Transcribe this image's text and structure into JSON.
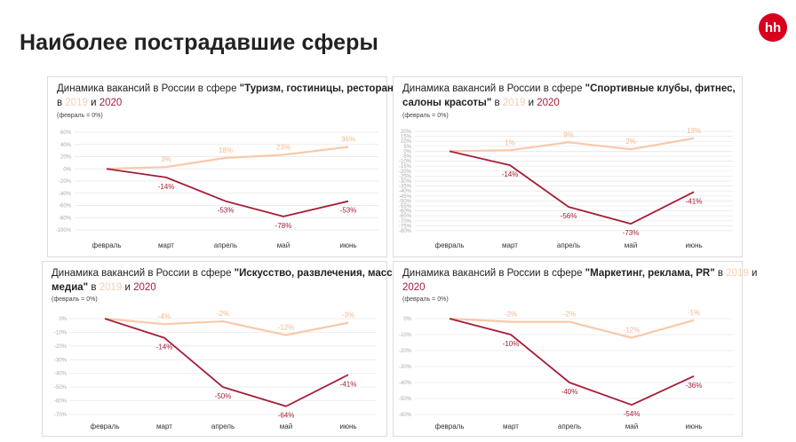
{
  "header": {
    "title": "Наиболее пострадавшие сферы",
    "logo_text": "hh",
    "logo_color": "#d6001c"
  },
  "colors": {
    "y2019": "#f8c9a9",
    "y2020": "#a51d36",
    "grid": "#e6e6e6"
  },
  "chart_data": [
    {
      "type": "line",
      "title_prefix": "Динамика вакансий в России в сфере ",
      "title_bold": "\"Туризм, гостиницы, рестораны\"",
      "title_in": "в",
      "year_2019": "2019",
      "title_and": "и",
      "year_2020": "2020",
      "note": "(февраль = 0%)",
      "categories": [
        "февраль",
        "март",
        "апрель",
        "май",
        "июнь"
      ],
      "yticks": [
        "60%",
        "40%",
        "20%",
        "0%",
        "-20%",
        "-40%",
        "-60%",
        "-80%",
        "-100%"
      ],
      "ylim": [
        -100,
        60
      ],
      "series": [
        {
          "name": "2019",
          "values": [
            0,
            3,
            18,
            23,
            36
          ],
          "labels": [
            "",
            "3%",
            "18%",
            "23%",
            "36%"
          ]
        },
        {
          "name": "2020",
          "values": [
            0,
            -14,
            -53,
            -78,
            -53
          ],
          "labels": [
            "",
            "-14%",
            "-53%",
            "-78%",
            "-53%"
          ]
        }
      ]
    },
    {
      "type": "line",
      "title_prefix": "Динамика вакансий в России в сфере ",
      "title_bold": "\"Спортивные клубы, фитнес, салоны красоты\"",
      "title_in": "в",
      "year_2019": "2019",
      "title_and": "и",
      "year_2020": "2020",
      "note": "(февраль = 0%)",
      "categories": [
        "февраль",
        "март",
        "апрель",
        "май",
        "июнь"
      ],
      "yticks": [
        "20%",
        "15%",
        "10%",
        "5%",
        "0%",
        "-5%",
        "-10%",
        "-15%",
        "-20%",
        "-25%",
        "-30%",
        "-35%",
        "-40%",
        "-45%",
        "-50%",
        "-55%",
        "-60%",
        "-65%",
        "-70%",
        "-75%",
        "-80%"
      ],
      "ylim": [
        -80,
        20
      ],
      "series": [
        {
          "name": "2019",
          "values": [
            0,
            1,
            9,
            2,
            13
          ],
          "labels": [
            "",
            "1%",
            "9%",
            "2%",
            "13%"
          ]
        },
        {
          "name": "2020",
          "values": [
            0,
            -14,
            -56,
            -73,
            -41
          ],
          "labels": [
            "",
            "-14%",
            "-56%",
            "-73%",
            "-41%"
          ]
        }
      ]
    },
    {
      "type": "line",
      "title_prefix": "Динамика вакансий в России в сфере ",
      "title_bold": "\"Искусство, развлечения, масс-медиа\"",
      "title_in": "в",
      "year_2019": "2019",
      "title_and": "и",
      "year_2020": "2020",
      "note": "(февраль = 0%)",
      "categories": [
        "февраль",
        "март",
        "апрель",
        "май",
        "июнь"
      ],
      "yticks": [
        "0%",
        "-10%",
        "-20%",
        "-30%",
        "-40%",
        "-50%",
        "-60%",
        "-70%"
      ],
      "ylim": [
        -70,
        0
      ],
      "series": [
        {
          "name": "2019",
          "values": [
            0,
            -4,
            -2,
            -12,
            -3
          ],
          "labels": [
            "",
            "-4%",
            "-2%",
            "-12%",
            "-3%"
          ]
        },
        {
          "name": "2020",
          "values": [
            0,
            -14,
            -50,
            -64,
            -41
          ],
          "labels": [
            "",
            "-14%",
            "-50%",
            "-64%",
            "-41%"
          ]
        }
      ]
    },
    {
      "type": "line",
      "title_prefix": "Динамика вакансий в России в сфере ",
      "title_bold": "\"Маркетинг, реклама, PR\"",
      "title_in": "в",
      "year_2019": "2019",
      "title_and": "и",
      "year_2020": "2020",
      "note": "(февраль = 0%)",
      "categories": [
        "февраль",
        "март",
        "апрель",
        "май",
        "июнь"
      ],
      "yticks": [
        "0%",
        "-10%",
        "-20%",
        "-30%",
        "-40%",
        "-50%",
        "-60%"
      ],
      "ylim": [
        -60,
        0
      ],
      "series": [
        {
          "name": "2019",
          "values": [
            0,
            -2,
            -2,
            -12,
            -1
          ],
          "labels": [
            "",
            "-2%",
            "-2%",
            "-12%",
            "-1%"
          ]
        },
        {
          "name": "2020",
          "values": [
            0,
            -10,
            -40,
            -54,
            -36
          ],
          "labels": [
            "",
            "-10%",
            "-40%",
            "-54%",
            "-36%"
          ]
        }
      ]
    }
  ]
}
